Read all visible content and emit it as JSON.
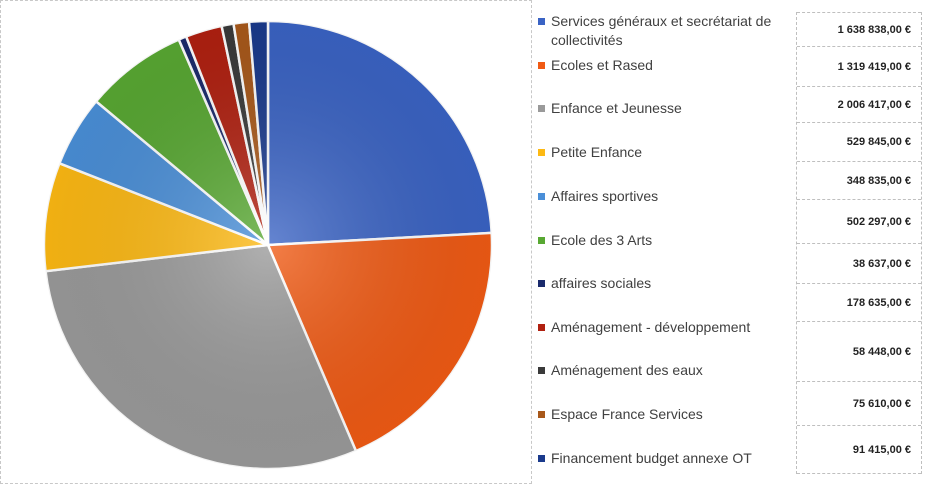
{
  "chart_data": {
    "type": "pie",
    "categories": [
      "Services généraux et secrétariat de collectivités",
      "Ecoles et Rased",
      "Enfance et Jeunesse",
      "Petite Enfance",
      "Affaires sportives",
      "Ecole des 3 Arts",
      "affaires sociales",
      "Aménagement - développement",
      "Aménagement des eaux",
      "Espace France Services",
      "Financement budget annexe OT"
    ],
    "values": [
      1638838,
      1319419,
      2006417,
      529845,
      348835,
      502297,
      38637,
      178635,
      58448,
      75610,
      91415
    ],
    "value_labels": [
      "1 638 838,00 €",
      "1 319 419,00 €",
      "2 006 417,00 €",
      "529 845,00 €",
      "348 835,00 €",
      "502 297,00 €",
      "38 637,00 €",
      "178 635,00 €",
      "58 448,00 €",
      "75 610,00 €",
      "91 415,00 €"
    ],
    "colors": [
      "#3a63c4",
      "#f05a14",
      "#9a9a9a",
      "#fdb913",
      "#4a8fd8",
      "#58a832",
      "#1a2a6c",
      "#b02010",
      "#3a3a3a",
      "#a8581a",
      "#1a3a8c"
    ],
    "legend_position": "right",
    "start_angle": "top, clockwise"
  }
}
